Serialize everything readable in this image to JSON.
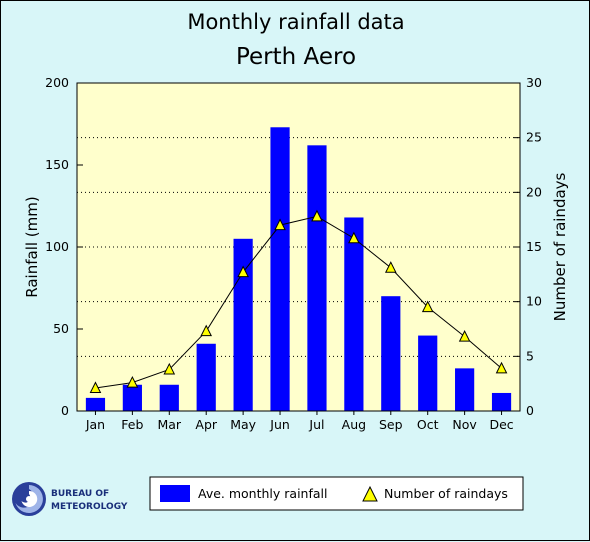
{
  "chart_data": {
    "type": "bar",
    "title": "Monthly rainfall data",
    "subtitle": "Perth Aero",
    "categories": [
      "Jan",
      "Feb",
      "Mar",
      "Apr",
      "May",
      "Jun",
      "Jul",
      "Aug",
      "Sep",
      "Oct",
      "Nov",
      "Dec"
    ],
    "series": [
      {
        "name": "Ave. monthly rainfall",
        "type": "bar",
        "axis": "left",
        "values": [
          8,
          16,
          16,
          41,
          105,
          173,
          162,
          118,
          70,
          46,
          26,
          11
        ]
      },
      {
        "name": "Number of raindays",
        "type": "line",
        "axis": "right",
        "values": [
          2.1,
          2.6,
          3.8,
          7.3,
          12.7,
          17.0,
          17.8,
          15.8,
          13.1,
          9.5,
          6.8,
          3.9
        ]
      }
    ],
    "ylabel": "Rainfall (mm)",
    "ylabel_right": "Number of raindays",
    "ylim": [
      0,
      200
    ],
    "ylim_right": [
      0,
      30
    ],
    "yticks": [
      "0",
      "50",
      "100",
      "150",
      "200"
    ],
    "yticks_right": [
      "0",
      "5",
      "10",
      "15",
      "20",
      "25",
      "30"
    ],
    "grid": "horizontal dotted",
    "legend": "bottom",
    "colors": {
      "bar": "#0000ff",
      "marker": "#ffff00",
      "line": "#000000",
      "plot_bg": "#ffffcc",
      "page_bg": "#d8f6f8"
    }
  },
  "logo": {
    "line1": "BUREAU OF",
    "line2": "METEOROLOGY",
    "icon": "bom-swirl-icon"
  }
}
